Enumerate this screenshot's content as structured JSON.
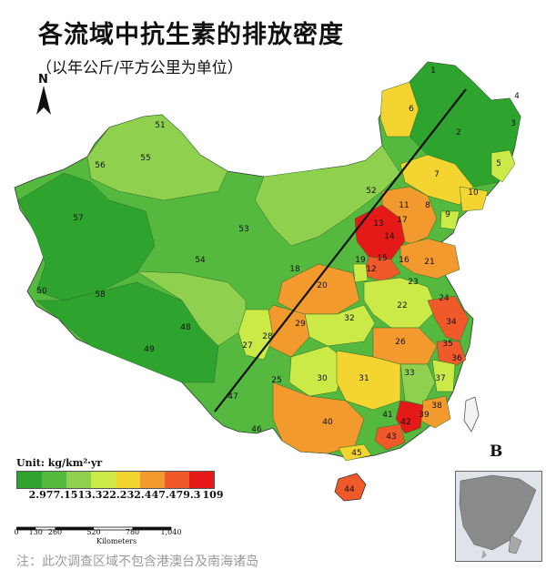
{
  "title": "各流域中抗生素的排放密度",
  "subtitle": "（以年公斤/平方公里为单位）",
  "north_label": "N",
  "panel_label": "B",
  "legend": {
    "title": "Unit: kg/km²·yr",
    "colors": [
      "#2ea42e",
      "#55b93f",
      "#8fd14e",
      "#ccea47",
      "#f4d431",
      "#f39a2e",
      "#f05a2a",
      "#e61919"
    ],
    "ticks": [
      "2.97",
      "7.15",
      "13.3",
      "22.2",
      "32.4",
      "47.4",
      "79.3",
      "109"
    ]
  },
  "scale": {
    "ticks": [
      "0",
      "130",
      "260",
      "520",
      "780",
      "1,040"
    ],
    "tick_values_km": [
      0,
      130,
      260,
      520,
      780,
      1040
    ],
    "unit": "Kilometers"
  },
  "footnote": "注：此次调查区域不包含港澳台及南海诸岛",
  "basins": [
    {
      "id": "1",
      "cls": 1
    },
    {
      "id": "2",
      "cls": 1
    },
    {
      "id": "3",
      "cls": 0
    },
    {
      "id": "4",
      "cls": 0
    },
    {
      "id": "5",
      "cls": 3
    },
    {
      "id": "6",
      "cls": 4
    },
    {
      "id": "7",
      "cls": 4
    },
    {
      "id": "8",
      "cls": 5
    },
    {
      "id": "9",
      "cls": 3
    },
    {
      "id": "10",
      "cls": 4
    },
    {
      "id": "11",
      "cls": 6
    },
    {
      "id": "12",
      "cls": 7
    },
    {
      "id": "13",
      "cls": 7
    },
    {
      "id": "14",
      "cls": 7
    },
    {
      "id": "15",
      "cls": 6
    },
    {
      "id": "16",
      "cls": 5
    },
    {
      "id": "17",
      "cls": 7
    },
    {
      "id": "18",
      "cls": 2
    },
    {
      "id": "19",
      "cls": 3
    },
    {
      "id": "20",
      "cls": 5
    },
    {
      "id": "21",
      "cls": 5
    },
    {
      "id": "22",
      "cls": 3
    },
    {
      "id": "23",
      "cls": 5
    },
    {
      "id": "24",
      "cls": 3
    },
    {
      "id": "25",
      "cls": 1
    },
    {
      "id": "26",
      "cls": 5
    },
    {
      "id": "27",
      "cls": 2
    },
    {
      "id": "28",
      "cls": 3
    },
    {
      "id": "29",
      "cls": 5
    },
    {
      "id": "30",
      "cls": 3
    },
    {
      "id": "31",
      "cls": 4
    },
    {
      "id": "32",
      "cls": 3
    },
    {
      "id": "33",
      "cls": 2
    },
    {
      "id": "34",
      "cls": 6
    },
    {
      "id": "35",
      "cls": 6
    },
    {
      "id": "36",
      "cls": 3
    },
    {
      "id": "37",
      "cls": 3
    },
    {
      "id": "38",
      "cls": 5
    },
    {
      "id": "39",
      "cls": 5
    },
    {
      "id": "40",
      "cls": 5
    },
    {
      "id": "41",
      "cls": 1
    },
    {
      "id": "42",
      "cls": 7
    },
    {
      "id": "43",
      "cls": 6
    },
    {
      "id": "44",
      "cls": 6
    },
    {
      "id": "45",
      "cls": 4
    },
    {
      "id": "46",
      "cls": 1
    },
    {
      "id": "47",
      "cls": 1
    },
    {
      "id": "48",
      "cls": 1
    },
    {
      "id": "49",
      "cls": 1
    },
    {
      "id": "50",
      "cls": 0
    },
    {
      "id": "51",
      "cls": 2
    },
    {
      "id": "52",
      "cls": 2
    },
    {
      "id": "53",
      "cls": 1
    },
    {
      "id": "54",
      "cls": 1
    },
    {
      "id": "55",
      "cls": 2
    },
    {
      "id": "56",
      "cls": 0
    },
    {
      "id": "57",
      "cls": 1
    },
    {
      "id": "58",
      "cls": 1
    }
  ]
}
